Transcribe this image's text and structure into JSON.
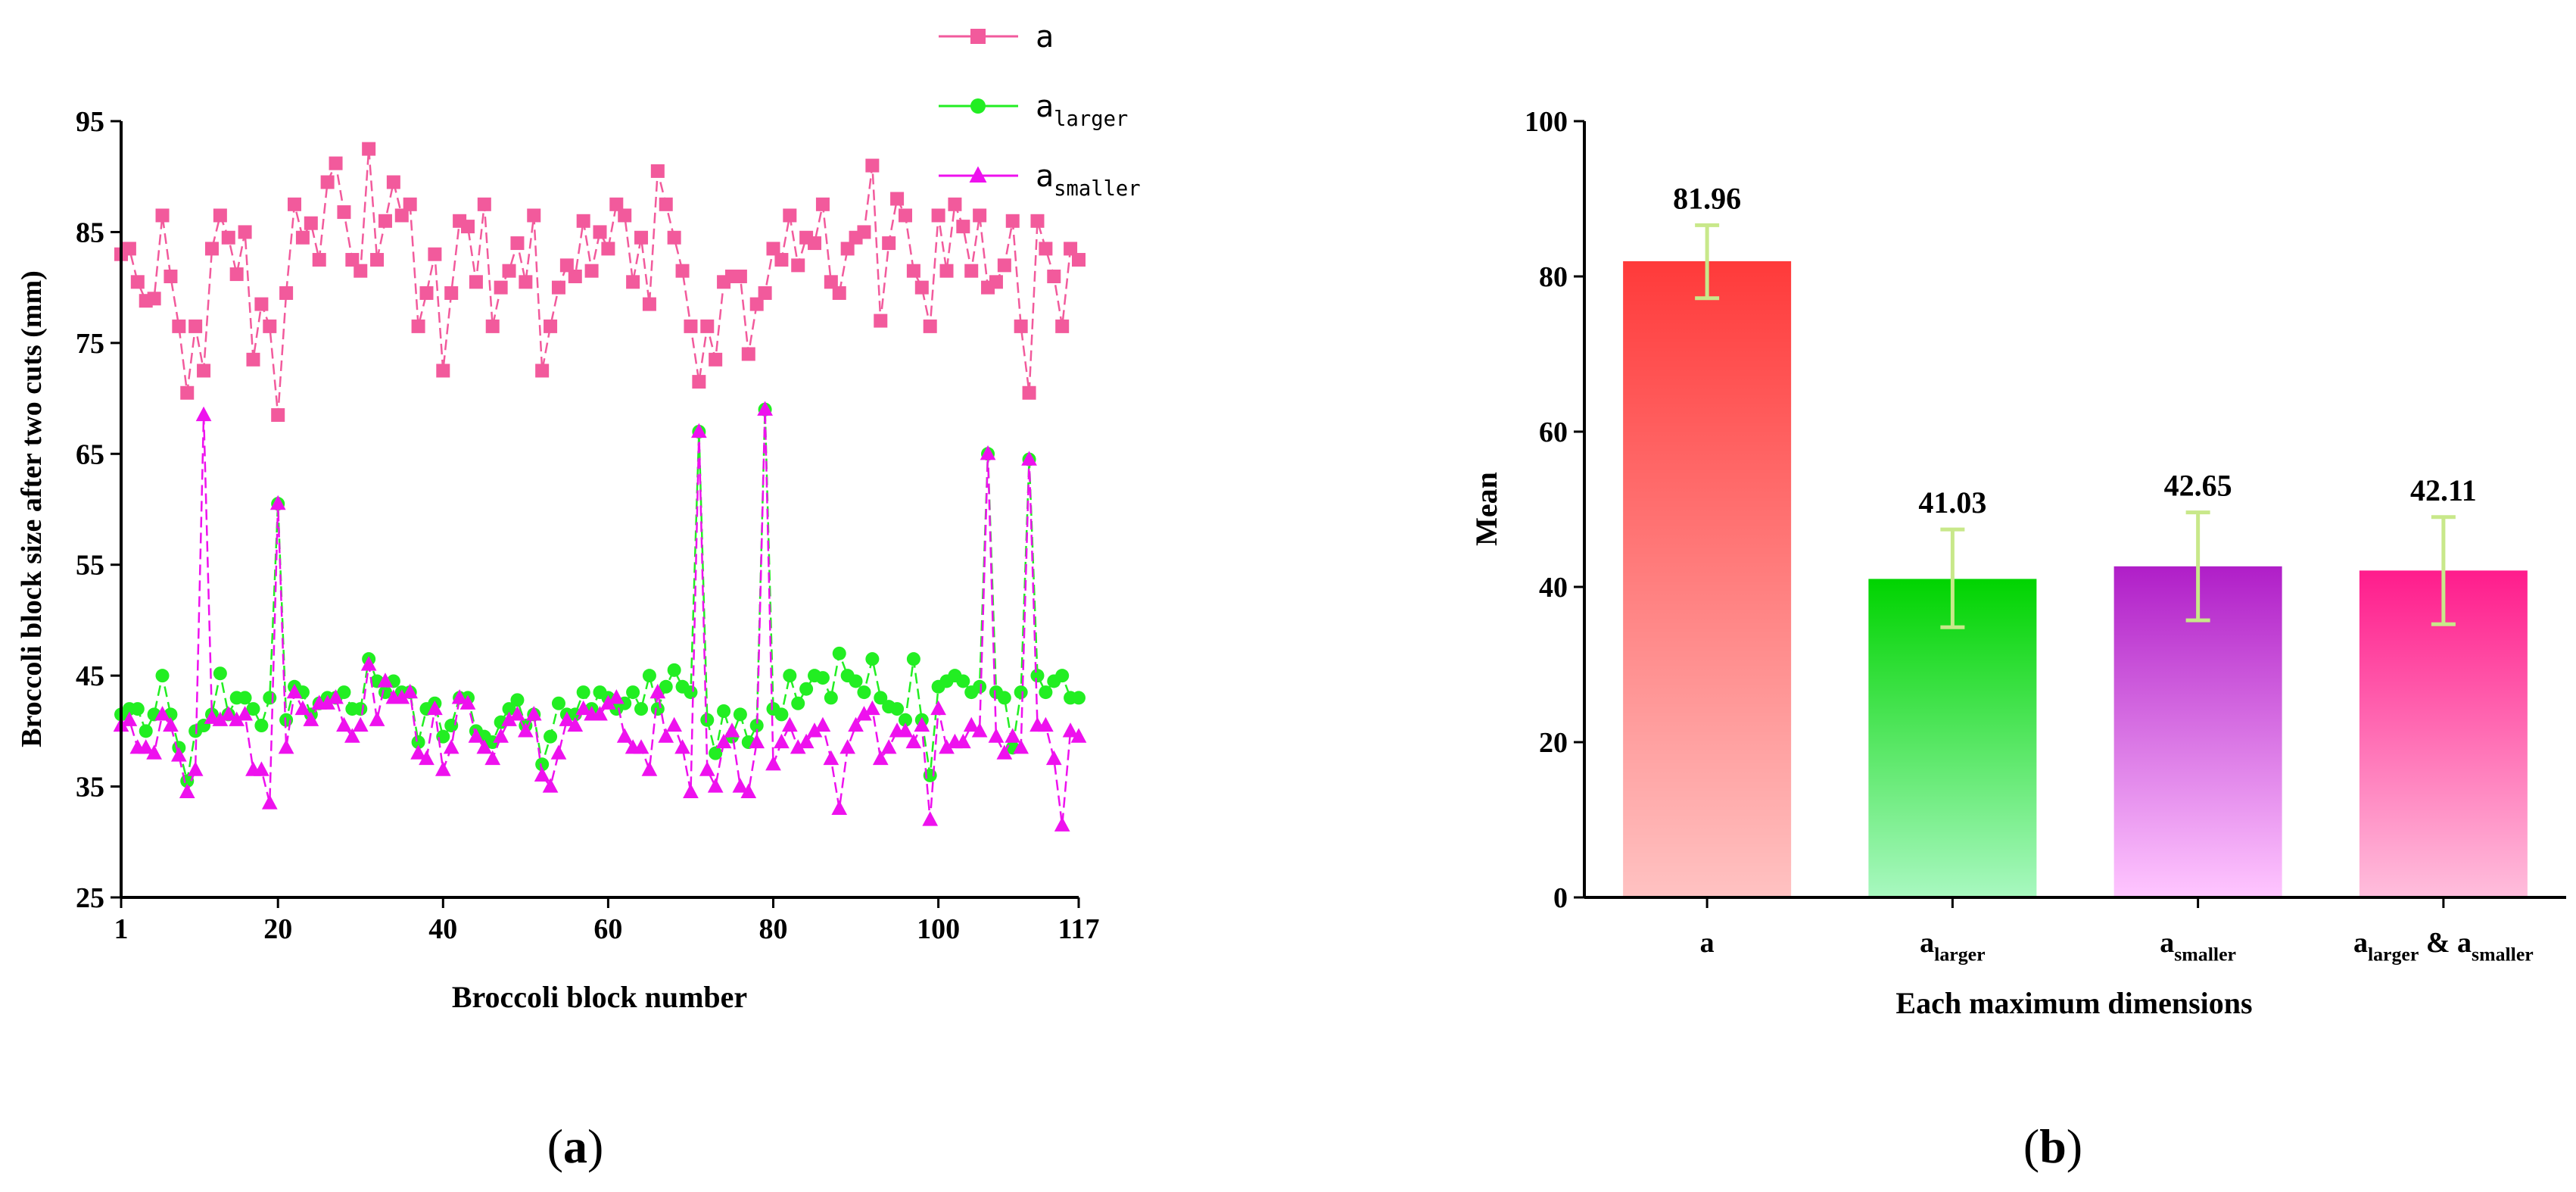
{
  "chart_data": [
    {
      "type": "line",
      "panel": "(a)",
      "panel_letter": "a",
      "xlabel": "Broccoli block number",
      "ylabel": "Broccoli block size after two cuts (mm)",
      "xlim": [
        1,
        117
      ],
      "ylim": [
        25,
        95
      ],
      "x_ticks": [
        1,
        20,
        40,
        60,
        80,
        100,
        117
      ],
      "y_ticks": [
        25,
        35,
        45,
        55,
        65,
        75,
        85,
        95
      ],
      "legend_position": "top-right",
      "series": [
        {
          "name": "a",
          "base": "a",
          "sub": "",
          "color": "#f25a9c",
          "marker": "square",
          "values": [
            83,
            83.5,
            80.5,
            78.8,
            79,
            86.5,
            81,
            76.5,
            70.5,
            76.5,
            72.5,
            83.5,
            86.5,
            84.5,
            81.2,
            85,
            73.5,
            78.5,
            76.5,
            68.5,
            79.5,
            87.5,
            84.5,
            85.8,
            82.5,
            89.5,
            91.2,
            86.8,
            82.5,
            81.5,
            92.5,
            82.5,
            86,
            89.5,
            86.5,
            87.5,
            76.5,
            79.5,
            83,
            72.5,
            79.5,
            86,
            85.5,
            80.5,
            87.5,
            76.5,
            80,
            81.5,
            84,
            80.5,
            86.5,
            72.5,
            76.5,
            80,
            82,
            81,
            86,
            81.5,
            85,
            83.5,
            87.5,
            86.5,
            80.5,
            84.5,
            78.5,
            90.5,
            87.5,
            84.5,
            81.5,
            76.5,
            71.5,
            76.5,
            73.5,
            80.5,
            81,
            81,
            74,
            78.5,
            79.5,
            83.5,
            82.5,
            86.5,
            82,
            84.5,
            84,
            87.5,
            80.5,
            79.5,
            83.5,
            84.5,
            85,
            91,
            77,
            84,
            88,
            86.5,
            81.5,
            80,
            76.5,
            86.5,
            81.5,
            87.5,
            85.5,
            81.5,
            86.5,
            80,
            80.5,
            82,
            86,
            76.5,
            70.5,
            86,
            83.5,
            81,
            76.5,
            83.5,
            82.5
          ]
        },
        {
          "name": "a_larger",
          "base": "a",
          "sub": "larger",
          "color": "#22ee22",
          "marker": "circle",
          "values": [
            41.5,
            42,
            42,
            40,
            41.5,
            45,
            41.5,
            38.5,
            35.5,
            40,
            40.5,
            41.5,
            45.2,
            41.5,
            43,
            43,
            42,
            40.5,
            43,
            60.5,
            41,
            44,
            43.5,
            41.5,
            42.5,
            43,
            43,
            43.5,
            42,
            42,
            46.5,
            44.5,
            43.5,
            44.5,
            43.5,
            43.5,
            39,
            42,
            42.5,
            39.5,
            40.5,
            43,
            43,
            40,
            39.5,
            39,
            40.8,
            42,
            42.8,
            40.5,
            41.5,
            37,
            39.5,
            42.5,
            41.5,
            41.5,
            43.5,
            42,
            43.5,
            43,
            42,
            42.5,
            43.5,
            42,
            45,
            42,
            44,
            45.5,
            44,
            43.5,
            67,
            41,
            38,
            41.8,
            39.5,
            41.5,
            39,
            40.5,
            69,
            42,
            41.5,
            45,
            42.5,
            43.8,
            45,
            44.8,
            43,
            47,
            45,
            44.5,
            43.5,
            46.5,
            43,
            42.2,
            42,
            41,
            46.5,
            41,
            36,
            44,
            44.5,
            45,
            44.5,
            43.5,
            44,
            65,
            43.5,
            43,
            38.5,
            43.5,
            64.5,
            45,
            43.5,
            44.5,
            45,
            43,
            43
          ]
        },
        {
          "name": "a_smaller",
          "base": "a",
          "sub": "smaller",
          "color": "#ee11ee",
          "marker": "triangle",
          "values": [
            40.5,
            41,
            38.5,
            38.5,
            38,
            41.5,
            40.5,
            37.8,
            34.5,
            36.5,
            68.5,
            41.2,
            41,
            41.5,
            41,
            41.5,
            36.5,
            36.5,
            33.5,
            60.5,
            38.5,
            43.5,
            42,
            41,
            42.5,
            42.5,
            43,
            40.5,
            39.5,
            40.5,
            46,
            41,
            44.5,
            43,
            43,
            43.5,
            38,
            37.5,
            42,
            36.5,
            38.5,
            43,
            42.5,
            39.5,
            38.5,
            37.5,
            39.5,
            41,
            41.5,
            40,
            41.5,
            36,
            35,
            38,
            41,
            40.5,
            42,
            41.5,
            41.5,
            42.5,
            43,
            39.5,
            38.5,
            38.5,
            36.5,
            43.5,
            39.5,
            40.5,
            38.5,
            34.5,
            67,
            36.5,
            35,
            39,
            40,
            35,
            34.5,
            39,
            69,
            37,
            39,
            40.5,
            38.5,
            39,
            40,
            40.5,
            37.5,
            33,
            38.5,
            40.5,
            41.5,
            42,
            37.5,
            38.5,
            40,
            40,
            39,
            40.5,
            32,
            42,
            38.5,
            39,
            39,
            40.5,
            40,
            65,
            39.5,
            38,
            39.5,
            38.5,
            64.5,
            40.5,
            40.5,
            37.5,
            31.5,
            40,
            39.5
          ]
        }
      ]
    },
    {
      "type": "bar",
      "panel": "(b)",
      "panel_letter": "b",
      "xlabel": "Each maximum dimensions",
      "ylabel": "Mean",
      "ylim": [
        0,
        100
      ],
      "y_ticks": [
        0,
        20,
        40,
        60,
        80,
        100
      ],
      "categories": [
        {
          "label": "a",
          "parts": [
            {
              "base": "a",
              "sub": ""
            }
          ],
          "joiner": ""
        },
        {
          "label": "a_larger",
          "parts": [
            {
              "base": "a",
              "sub": "larger"
            }
          ],
          "joiner": ""
        },
        {
          "label": "a_smaller",
          "parts": [
            {
              "base": "a",
              "sub": "smaller"
            }
          ],
          "joiner": ""
        },
        {
          "label": "a_larger & a_smaller",
          "parts": [
            {
              "base": "a",
              "sub": "larger"
            },
            {
              "base": "a",
              "sub": "smaller"
            }
          ],
          "joiner": " & "
        }
      ],
      "values": [
        81.96,
        41.03,
        42.65,
        42.11
      ],
      "value_labels": [
        "81.96",
        "41.03",
        "42.65",
        "42.11"
      ],
      "error_low": [
        77.2,
        34.8,
        35.7,
        35.2
      ],
      "error_high": [
        86.6,
        47.4,
        49.6,
        49.0
      ],
      "error_color": "#c8e88a",
      "bar_colors": [
        {
          "top": "#ff3a3a",
          "bottom": "#ffc2c2"
        },
        {
          "top": "#00d400",
          "bottom": "#a8f8c0"
        },
        {
          "top": "#b01ec8",
          "bottom": "#ffc6ff"
        },
        {
          "top": "#ff1c8c",
          "bottom": "#ffbedc"
        }
      ]
    }
  ]
}
